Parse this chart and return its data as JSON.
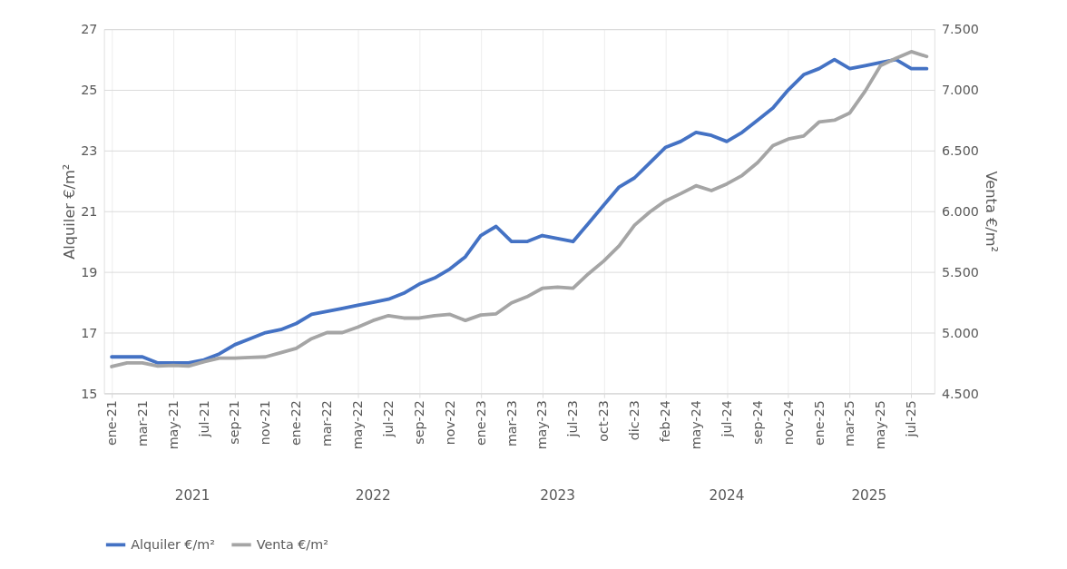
{
  "chart_data": {
    "type": "line",
    "ylabel": "Alquiler €/m²",
    "y2label": "Venta €/m²",
    "categories": [
      "ene-21",
      null,
      "mar-21",
      null,
      "may-21",
      null,
      "jul-21",
      null,
      "sep-21",
      null,
      "nov-21",
      null,
      "ene-22",
      null,
      "mar-22",
      null,
      "may-22",
      null,
      "jul-22",
      null,
      "sep-22",
      null,
      "nov-22",
      null,
      "ene-23",
      null,
      "mar-23",
      null,
      "may-23",
      null,
      "jul-23",
      null,
      "oct-23",
      null,
      "dic-23",
      null,
      "feb-24",
      null,
      "may-24",
      null,
      "jul-24",
      null,
      "sep-24",
      null,
      "nov-24",
      null,
      "ene-25",
      null,
      "mar-25",
      null,
      "may-25",
      null,
      "jul-25",
      null
    ],
    "series": [
      {
        "name": "Alquiler €/m²",
        "color": "#4472c4",
        "axis": "y",
        "values": [
          16.2,
          16.2,
          16.2,
          16.0,
          16.0,
          16.0,
          16.1,
          16.3,
          16.6,
          16.8,
          17.0,
          17.1,
          17.3,
          17.6,
          17.7,
          17.8,
          17.9,
          18.0,
          18.1,
          18.3,
          18.6,
          18.8,
          19.1,
          19.5,
          20.2,
          20.5,
          20.0,
          20.0,
          20.2,
          20.1,
          20.0,
          20.6,
          21.2,
          21.8,
          22.1,
          22.6,
          23.1,
          23.3,
          23.6,
          23.5,
          23.3,
          23.6,
          24.0,
          24.4,
          25.0,
          25.5,
          25.7,
          26.0,
          25.7,
          25.8,
          25.9,
          26.0,
          25.7,
          25.7
        ]
      },
      {
        "name": "Venta €/m²",
        "color": "#a5a5a5",
        "axis": "y2",
        "values": [
          4720,
          4750,
          4750,
          4725,
          4730,
          4725,
          4760,
          4790,
          4790,
          4795,
          4800,
          4835,
          4870,
          4950,
          5000,
          5000,
          5045,
          5100,
          5140,
          5120,
          5120,
          5140,
          5150,
          5100,
          5145,
          5155,
          5245,
          5295,
          5365,
          5375,
          5365,
          5485,
          5590,
          5715,
          5885,
          5995,
          6085,
          6145,
          6210,
          6170,
          6225,
          6295,
          6400,
          6540,
          6595,
          6620,
          6735,
          6750,
          6810,
          6990,
          7200,
          7260,
          7315,
          7275
        ]
      }
    ],
    "ylim": [
      15,
      27
    ],
    "yticks": [
      15,
      17,
      19,
      21,
      23,
      25,
      27
    ],
    "y2lim": [
      4500,
      7500
    ],
    "y2ticks": [
      {
        "value": 4500,
        "label": "4.500"
      },
      {
        "value": 5000,
        "label": "5.000"
      },
      {
        "value": 5500,
        "label": "5.500"
      },
      {
        "value": 6000,
        "label": "6.000"
      },
      {
        "value": 6500,
        "label": "6.500"
      },
      {
        "value": 7000,
        "label": "7.000"
      },
      {
        "value": 7500,
        "label": "7.500"
      }
    ],
    "annotations": [
      "2021",
      "2022",
      "2023",
      "2024",
      "2025"
    ],
    "grid": true,
    "legend": "bottom",
    "marker": "none",
    "line_style": "solid"
  }
}
